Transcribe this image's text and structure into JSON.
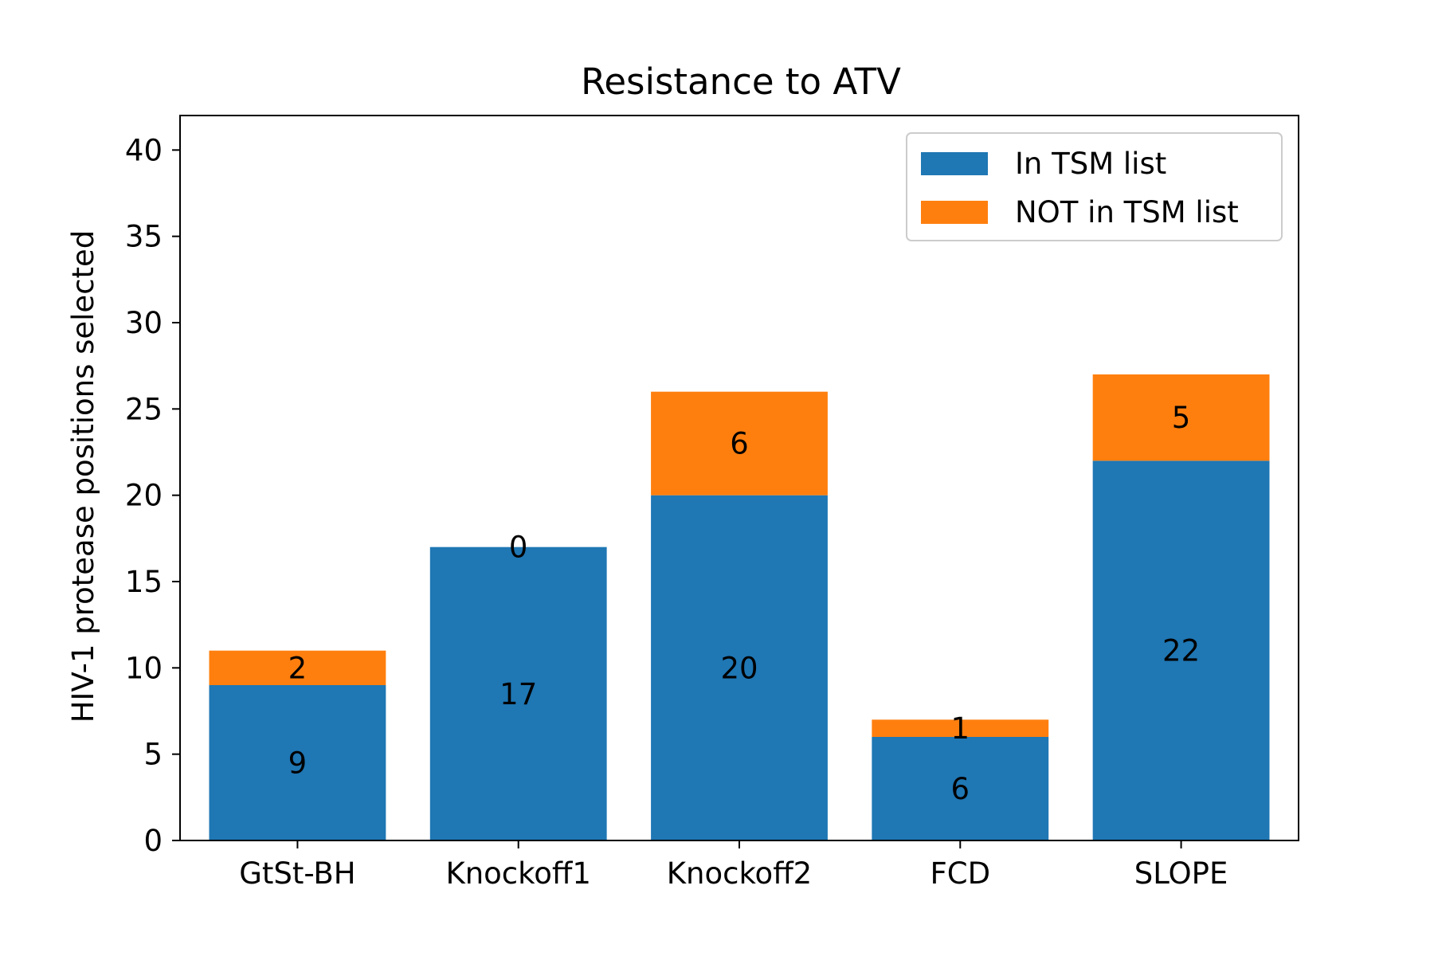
{
  "chart_data": {
    "type": "bar",
    "stacked": true,
    "title": "Resistance to ATV",
    "xlabel": "",
    "ylabel": "HIV-1 protease positions selected",
    "categories": [
      "GtSt-BH",
      "Knockoff1",
      "Knockoff2",
      "FCD",
      "SLOPE"
    ],
    "series": [
      {
        "name": "In TSM list",
        "values": [
          9,
          17,
          20,
          6,
          22
        ],
        "color": "#1f77b4"
      },
      {
        "name": "NOT in TSM list",
        "values": [
          2,
          0,
          6,
          1,
          5
        ],
        "color": "#ff7f0e"
      }
    ],
    "data_labels": [
      [
        "9",
        "17",
        "20",
        "6",
        "22"
      ],
      [
        "2",
        "0",
        "6",
        "1",
        "5"
      ]
    ],
    "ylim": [
      0,
      42
    ],
    "yticks": [
      0,
      5,
      10,
      15,
      20,
      25,
      30,
      35,
      40
    ],
    "grid": false,
    "legend_position": "top-right"
  }
}
